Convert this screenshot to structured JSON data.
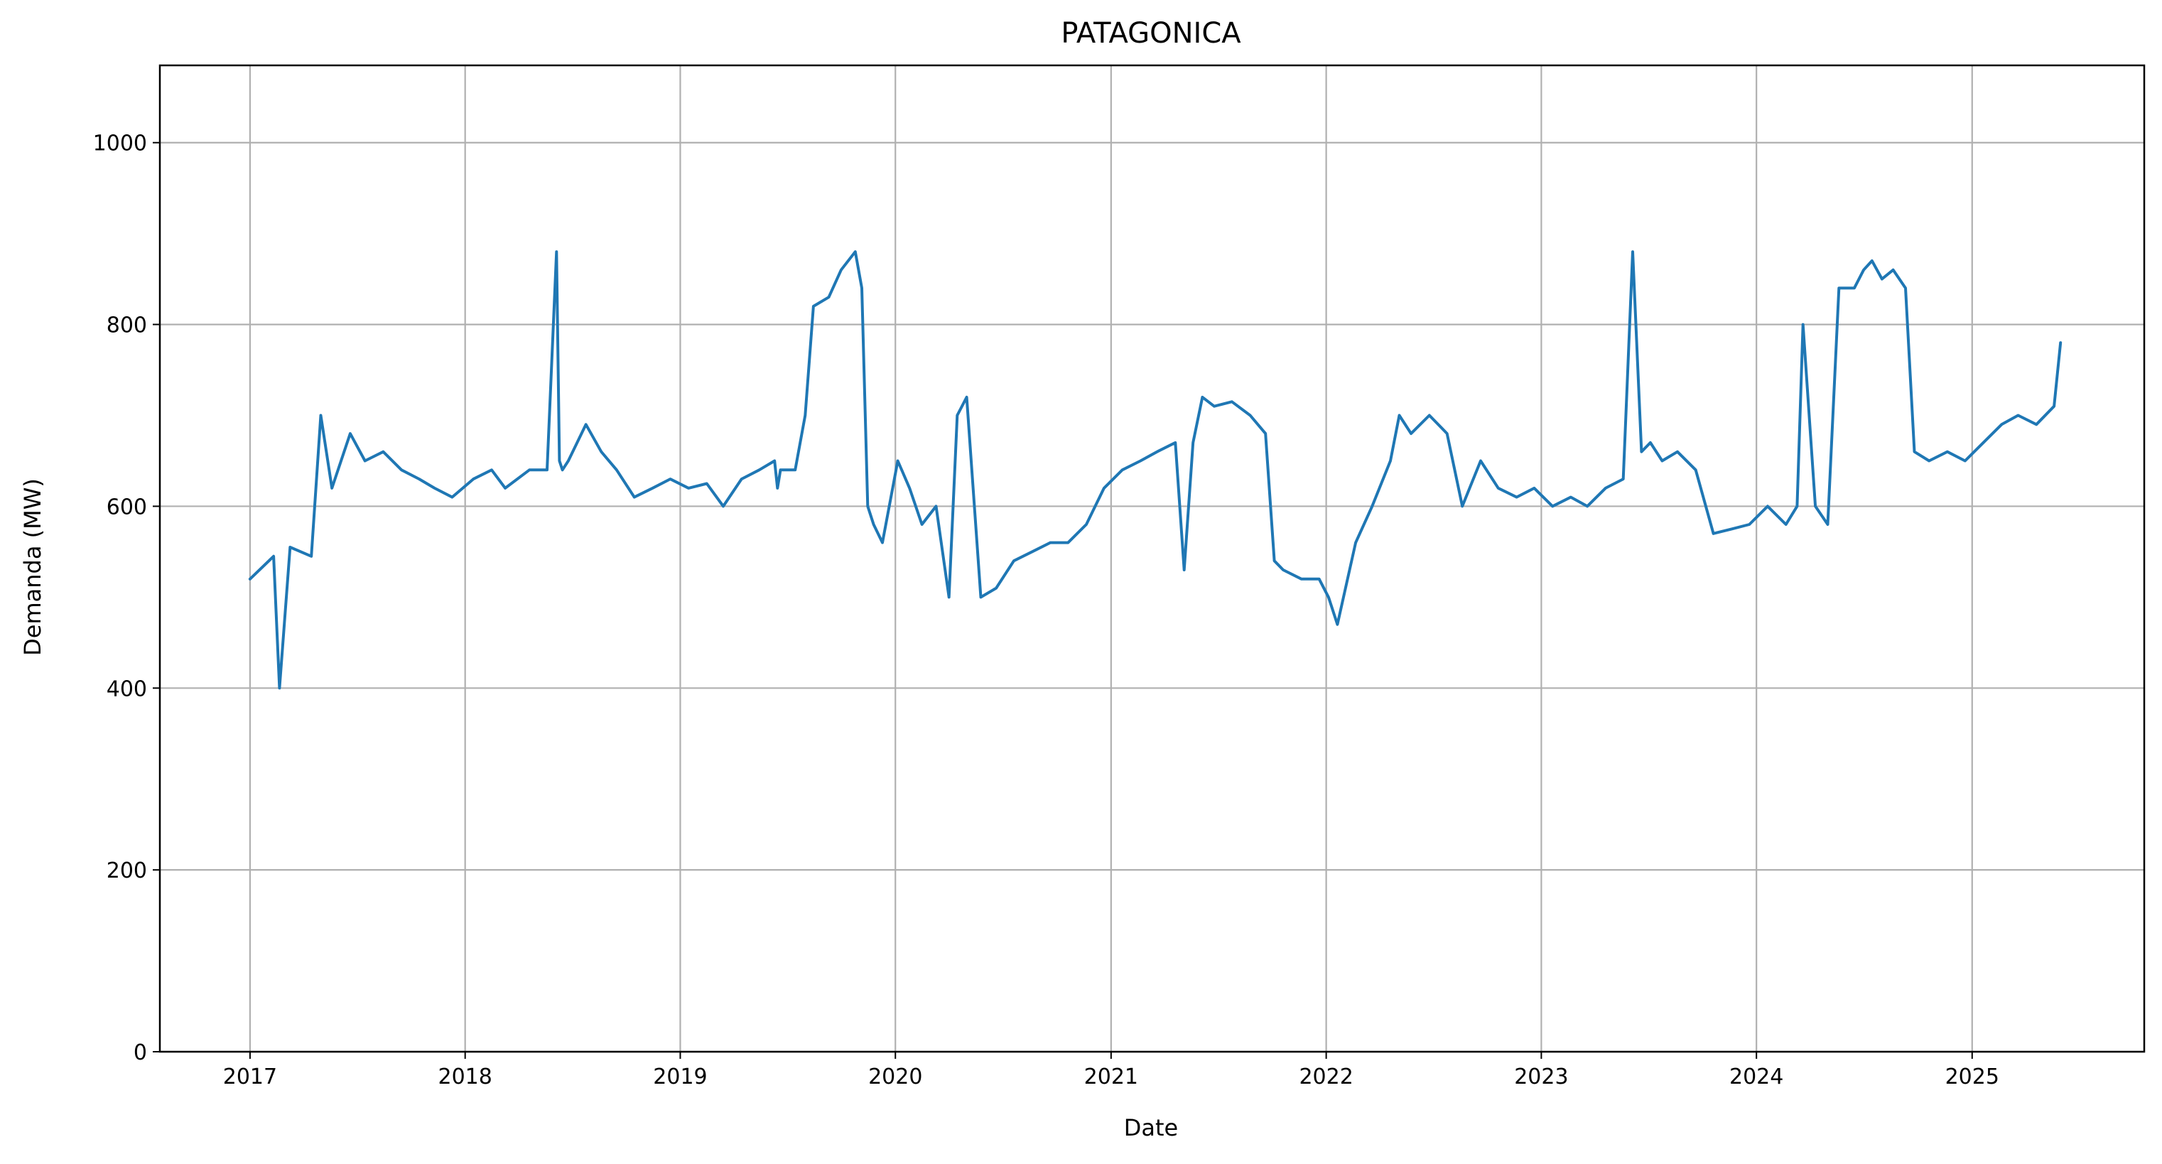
{
  "chart_data": {
    "type": "line",
    "title": "PATAGONICA",
    "xlabel": "Date",
    "ylabel": "Demanda (MW)",
    "xlim": [
      "2016-08-01",
      "2025-10-20"
    ],
    "ylim": [
      0,
      1085
    ],
    "grid": true,
    "x_ticks": [
      "2017",
      "2018",
      "2019",
      "2020",
      "2021",
      "2022",
      "2023",
      "2024",
      "2025"
    ],
    "y_ticks": [
      0,
      200,
      400,
      600,
      800,
      1000
    ],
    "colors": {
      "series": "#1f77b4",
      "grid": "#b0b0b0"
    },
    "series": [
      {
        "x": [
          "2017-01-01",
          "2017-02-10",
          "2017-02-20",
          "2017-03-10",
          "2017-04-15",
          "2017-05-01",
          "2017-05-20",
          "2017-06-20",
          "2017-07-15",
          "2017-08-15",
          "2017-09-15",
          "2017-10-15",
          "2017-11-10",
          "2017-12-10",
          "2018-01-15",
          "2018-02-15",
          "2018-03-10",
          "2018-04-20",
          "2018-05-20",
          "2018-06-05",
          "2018-06-10",
          "2018-06-15",
          "2018-06-25",
          "2018-07-25",
          "2018-08-20",
          "2018-09-15",
          "2018-10-15",
          "2018-11-15",
          "2018-12-15",
          "2019-01-15",
          "2019-02-15",
          "2019-03-15",
          "2019-04-15",
          "2019-05-15",
          "2019-06-10",
          "2019-06-15",
          "2019-06-20",
          "2019-07-15",
          "2019-08-01",
          "2019-08-15",
          "2019-09-10",
          "2019-10-01",
          "2019-10-25",
          "2019-11-05",
          "2019-11-15",
          "2019-11-25",
          "2019-12-10",
          "2020-01-05",
          "2020-01-25",
          "2020-02-15",
          "2020-03-10",
          "2020-04-01",
          "2020-04-15",
          "2020-05-01",
          "2020-05-25",
          "2020-06-20",
          "2020-07-20",
          "2020-08-20",
          "2020-09-20",
          "2020-10-20",
          "2020-11-20",
          "2020-12-20",
          "2021-01-20",
          "2021-02-20",
          "2021-03-20",
          "2021-04-20",
          "2021-05-05",
          "2021-05-20",
          "2021-06-05",
          "2021-06-25",
          "2021-07-25",
          "2021-08-25",
          "2021-09-20",
          "2021-10-05",
          "2021-10-20",
          "2021-11-20",
          "2021-12-20",
          "2022-01-05",
          "2022-01-20",
          "2022-02-20",
          "2022-03-20",
          "2022-04-20",
          "2022-05-05",
          "2022-05-25",
          "2022-06-25",
          "2022-07-25",
          "2022-08-20",
          "2022-09-20",
          "2022-10-20",
          "2022-11-20",
          "2022-12-20",
          "2023-01-20",
          "2023-02-20",
          "2023-03-20",
          "2023-04-20",
          "2023-05-20",
          "2023-06-05",
          "2023-06-20",
          "2023-07-05",
          "2023-07-25",
          "2023-08-20",
          "2023-09-20",
          "2023-10-20",
          "2023-11-20",
          "2023-12-20",
          "2024-01-20",
          "2024-02-20",
          "2024-03-10",
          "2024-03-20",
          "2024-04-10",
          "2024-05-01",
          "2024-05-20",
          "2024-06-15",
          "2024-07-01",
          "2024-07-15",
          "2024-08-01",
          "2024-08-20",
          "2024-09-10",
          "2024-09-25",
          "2024-10-20",
          "2024-11-20",
          "2024-12-20",
          "2025-01-20",
          "2025-02-20",
          "2025-03-20",
          "2025-04-20",
          "2025-05-20",
          "2025-05-31"
        ],
        "y": [
          520,
          545,
          400,
          555,
          545,
          700,
          620,
          680,
          650,
          660,
          640,
          630,
          620,
          610,
          630,
          640,
          620,
          640,
          640,
          880,
          650,
          640,
          650,
          690,
          660,
          640,
          610,
          620,
          630,
          620,
          625,
          600,
          630,
          640,
          650,
          620,
          640,
          640,
          700,
          820,
          830,
          860,
          880,
          840,
          600,
          580,
          560,
          650,
          620,
          580,
          600,
          500,
          700,
          720,
          500,
          510,
          540,
          550,
          560,
          560,
          580,
          620,
          640,
          650,
          660,
          670,
          530,
          670,
          720,
          710,
          715,
          700,
          680,
          540,
          530,
          520,
          520,
          500,
          470,
          560,
          600,
          650,
          700,
          680,
          700,
          680,
          600,
          650,
          620,
          610,
          620,
          600,
          610,
          600,
          620,
          630,
          880,
          660,
          670,
          650,
          660,
          640,
          570,
          575,
          580,
          600,
          580,
          600,
          800,
          600,
          580,
          840,
          840,
          860,
          870,
          850,
          860,
          840,
          660,
          650,
          660,
          650,
          670,
          690,
          700,
          690,
          710,
          780
        ]
      }
    ]
  }
}
